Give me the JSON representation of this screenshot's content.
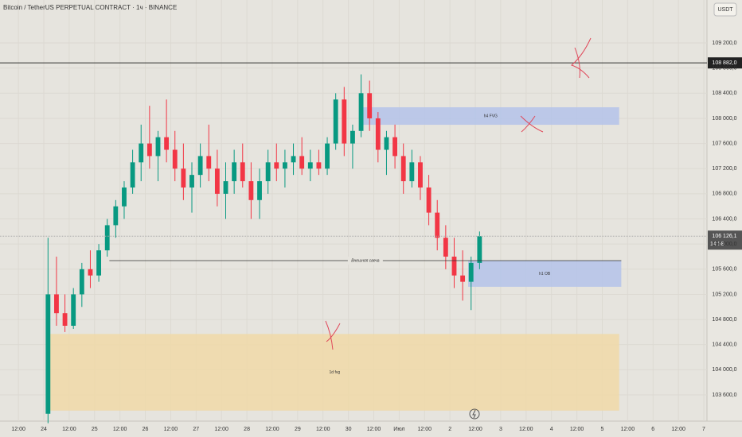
{
  "chart_data": {
    "type": "candlestick",
    "title": "Bitcoin / TetherUS PERPETUAL CONTRACT · 1ч · BINANCE",
    "currency": "USDT",
    "up_color": "#089981",
    "down_color": "#f23645",
    "xlim": [
      -20.7,
      313.5
    ],
    "xticks": [
      {
        "value": -12,
        "label": "12:00"
      },
      {
        "value": 0,
        "label": "24"
      },
      {
        "value": 12,
        "label": "12:00"
      },
      {
        "value": 24,
        "label": "25"
      },
      {
        "value": 36,
        "label": "12:00"
      },
      {
        "value": 48,
        "label": "26"
      },
      {
        "value": 60,
        "label": "12:00"
      },
      {
        "value": 72,
        "label": "27"
      },
      {
        "value": 84,
        "label": "12:00"
      },
      {
        "value": 96,
        "label": "28"
      },
      {
        "value": 108,
        "label": "12:00"
      },
      {
        "value": 120,
        "label": "29"
      },
      {
        "value": 132,
        "label": "12:00"
      },
      {
        "value": 144,
        "label": "30"
      },
      {
        "value": 156,
        "label": "12:00"
      },
      {
        "value": 168,
        "label": "Июл"
      },
      {
        "value": 180,
        "label": "12:00"
      },
      {
        "value": 192,
        "label": "2"
      },
      {
        "value": 204,
        "label": "12:00"
      },
      {
        "value": 216,
        "label": "3"
      },
      {
        "value": 228,
        "label": "12:00"
      },
      {
        "value": 240,
        "label": "4"
      },
      {
        "value": 252,
        "label": "12:00"
      },
      {
        "value": 264,
        "label": "5"
      },
      {
        "value": 276,
        "label": "12:00"
      },
      {
        "value": 288,
        "label": "6"
      },
      {
        "value": 300,
        "label": "12:00"
      },
      {
        "value": 312,
        "label": "7"
      }
    ],
    "ylim": [
      103183,
      109883
    ],
    "yticks": [
      {
        "value": 103600,
        "label": "103 600,0"
      },
      {
        "value": 104000,
        "label": "104 000,0"
      },
      {
        "value": 104400,
        "label": "104 400,0"
      },
      {
        "value": 104800,
        "label": "104 800,0"
      },
      {
        "value": 105200,
        "label": "105 200,0"
      },
      {
        "value": 105600,
        "label": "105 600,0"
      },
      {
        "value": 106000,
        "label": "106 000,0"
      },
      {
        "value": 106400,
        "label": "106 400,0"
      },
      {
        "value": 106800,
        "label": "106 800,0"
      },
      {
        "value": 107200,
        "label": "107 200,0"
      },
      {
        "value": 107600,
        "label": "107 600,0"
      },
      {
        "value": 108000,
        "label": "108 000,0"
      },
      {
        "value": 108400,
        "label": "108 400,0"
      },
      {
        "value": 108800,
        "label": "108 800,0"
      },
      {
        "value": 109200,
        "label": "109 200,0"
      }
    ],
    "x": [
      0,
      4,
      8,
      12,
      16,
      20,
      24,
      28,
      32,
      36,
      40,
      44,
      48,
      52,
      56,
      60,
      64,
      68,
      72,
      76,
      80,
      84,
      88,
      92,
      96,
      100,
      104,
      108,
      112,
      116,
      120,
      124,
      128,
      132,
      136,
      140,
      144,
      148,
      152,
      156,
      160,
      164,
      168,
      172,
      176,
      180,
      184,
      188,
      192,
      196,
      200,
      204
    ],
    "open": [
      103300,
      105200,
      104900,
      104700,
      105200,
      105600,
      105500,
      105900,
      106300,
      106600,
      106900,
      107300,
      107600,
      107400,
      107700,
      107500,
      107200,
      106900,
      107100,
      107400,
      107200,
      106800,
      107000,
      107300,
      107000,
      106700,
      107000,
      107300,
      107200,
      107300,
      107400,
      107200,
      107300,
      107200,
      107600,
      108300,
      107600,
      107800,
      108400,
      108000,
      107500,
      107700,
      107400,
      107000,
      107300,
      106900,
      106500,
      106100,
      105800,
      105500,
      105400,
      105700
    ],
    "high": [
      106100,
      105800,
      105200,
      105300,
      105700,
      105900,
      106000,
      106400,
      106700,
      107000,
      107500,
      107900,
      108200,
      107800,
      108300,
      107800,
      107600,
      107300,
      107600,
      107900,
      107500,
      107300,
      107500,
      107600,
      107300,
      107200,
      107500,
      107600,
      107500,
      107600,
      107700,
      107500,
      107500,
      107700,
      108400,
      108500,
      107900,
      108700,
      108600,
      108100,
      107800,
      107900,
      107600,
      107500,
      107400,
      107100,
      106700,
      106300,
      106100,
      105900,
      105800,
      106200
    ],
    "low": [
      103150,
      104700,
      104600,
      104650,
      105000,
      105300,
      105400,
      105800,
      106100,
      106400,
      106800,
      107000,
      107200,
      107000,
      107300,
      107000,
      106700,
      106500,
      106900,
      107000,
      106600,
      106400,
      106800,
      106900,
      106400,
      106400,
      106800,
      107000,
      106900,
      107100,
      107100,
      107000,
      107100,
      107100,
      107500,
      107400,
      107200,
      107700,
      107800,
      107300,
      107100,
      107200,
      106800,
      106900,
      106700,
      106300,
      105900,
      105600,
      105300,
      105100,
      104950,
      105600
    ],
    "close": [
      105200,
      104900,
      104700,
      105200,
      105600,
      105500,
      105900,
      106300,
      106600,
      106900,
      107300,
      107600,
      107400,
      107700,
      107500,
      107200,
      106900,
      107100,
      107400,
      107200,
      106800,
      107000,
      107300,
      107000,
      106700,
      107000,
      107300,
      107200,
      107300,
      107400,
      107200,
      107300,
      107200,
      107600,
      108300,
      107600,
      107800,
      108400,
      108000,
      107500,
      107700,
      107400,
      107000,
      107300,
      106900,
      106500,
      106100,
      105800,
      105500,
      105400,
      105700,
      106126.1
    ],
    "zones": [
      {
        "label": "1d fvg",
        "x": [
          3,
          272
        ],
        "y": [
          104570,
          103350
        ],
        "color": "#f0d9a8"
      },
      {
        "label": "h4 FVG",
        "x": [
          150.5,
          272
        ],
        "y": [
          108176,
          107898
        ],
        "color": "#b4c3ea"
      },
      {
        "label": "h1 OB",
        "x": [
          200.6,
          273
        ],
        "y": [
          105737,
          105320
        ],
        "color": "#b4c3ea"
      }
    ],
    "ray": {
      "label": "Внешняя свеча",
      "x": [
        31,
        273
      ],
      "value": 105737
    },
    "price_line": {
      "value": 108882,
      "label": "108 882,0"
    },
    "last_price": {
      "value": 106126.1,
      "label": "106 126,1",
      "countdown": "14:58"
    }
  }
}
